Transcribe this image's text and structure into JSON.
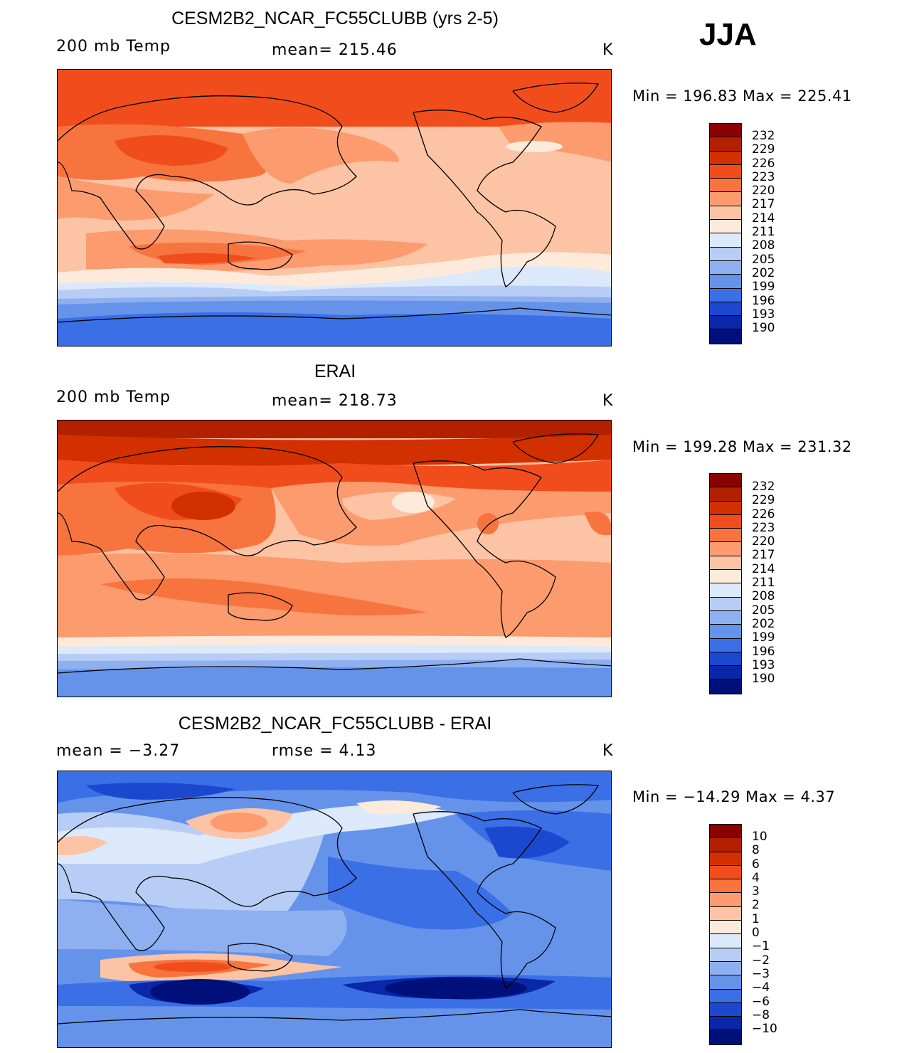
{
  "season": "JJA",
  "panels": [
    {
      "title": "CESM2B2_NCAR_FC55CLUBB (yrs 2-5)",
      "variable": "200 mb Temp",
      "stat": "mean=  215.46",
      "units": "K",
      "minmax": "Min  =  196.83  Max  =  225.41",
      "colorbar_labels": [
        "232",
        "229",
        "226",
        "223",
        "220",
        "217",
        "214",
        "211",
        "208",
        "205",
        "202",
        "199",
        "196",
        "193",
        "190"
      ]
    },
    {
      "title": "ERAI",
      "variable": "200 mb Temp",
      "stat": "mean=  218.73",
      "units": "K",
      "minmax": "Min  =  199.28  Max  =  231.32",
      "colorbar_labels": [
        "232",
        "229",
        "226",
        "223",
        "220",
        "217",
        "214",
        "211",
        "208",
        "205",
        "202",
        "199",
        "196",
        "193",
        "190"
      ]
    },
    {
      "title": "CESM2B2_NCAR_FC55CLUBB - ERAI",
      "variable": "mean  =   −3.27",
      "stat": "rmse  =     4.13",
      "units": "K",
      "minmax": "Min  =  −14.29  Max  =     4.37",
      "colorbar_labels": [
        "10",
        "8",
        "6",
        "4",
        "3",
        "2",
        "1",
        "0",
        "−1",
        "−2",
        "−3",
        "−4",
        "−6",
        "−8",
        "−10"
      ]
    }
  ],
  "colors": {
    "scale": [
      "#8b0000",
      "#b22000",
      "#d33000",
      "#f14d1c",
      "#f8743f",
      "#fb9b6e",
      "#fcc3a4",
      "#feeadb",
      "#dbe9fa",
      "#b7cdf5",
      "#8eaff0",
      "#6593ea",
      "#3a6fe6",
      "#1c48d0",
      "#0927a8",
      "#00107a"
    ]
  }
}
